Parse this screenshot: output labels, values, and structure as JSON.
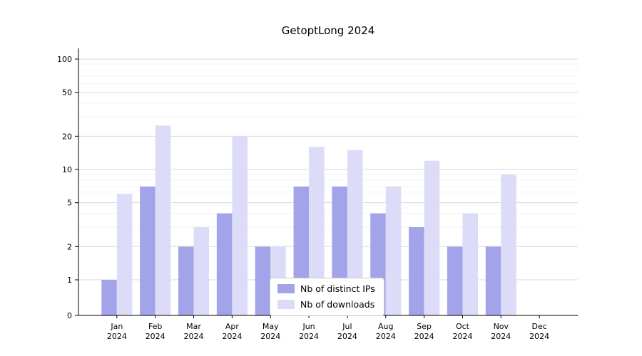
{
  "chart_data": {
    "type": "bar",
    "title": "GetoptLong 2024",
    "categories": [
      "Jan",
      "Feb",
      "Mar",
      "Apr",
      "May",
      "Jun",
      "Jul",
      "Aug",
      "Sep",
      "Oct",
      "Nov",
      "Dec"
    ],
    "year_label": "2024",
    "series": [
      {
        "name": "Nb of distinct IPs",
        "color": "#a3a3ea",
        "values": [
          1,
          7,
          2,
          4,
          2,
          7,
          7,
          4,
          3,
          2,
          2,
          0
        ]
      },
      {
        "name": "Nb of downloads",
        "color": "#dcdcf8",
        "values": [
          6,
          25,
          3,
          20,
          2,
          16,
          15,
          7,
          12,
          4,
          9,
          0
        ]
      }
    ],
    "yscale": "symlog",
    "yticks": [
      0,
      1,
      2,
      5,
      10,
      20,
      50,
      100
    ],
    "minor_yticks": [
      3,
      4,
      6,
      7,
      8,
      9,
      30,
      40,
      60,
      70,
      80,
      90
    ],
    "ylim": [
      0,
      110
    ],
    "xlabel": "",
    "ylabel": "",
    "grid": true,
    "legend_position": "lower center",
    "grid_color": "#d9d9d9",
    "minor_grid_color": "#efefef",
    "axis_color": "#000000",
    "background": "#ffffff"
  }
}
